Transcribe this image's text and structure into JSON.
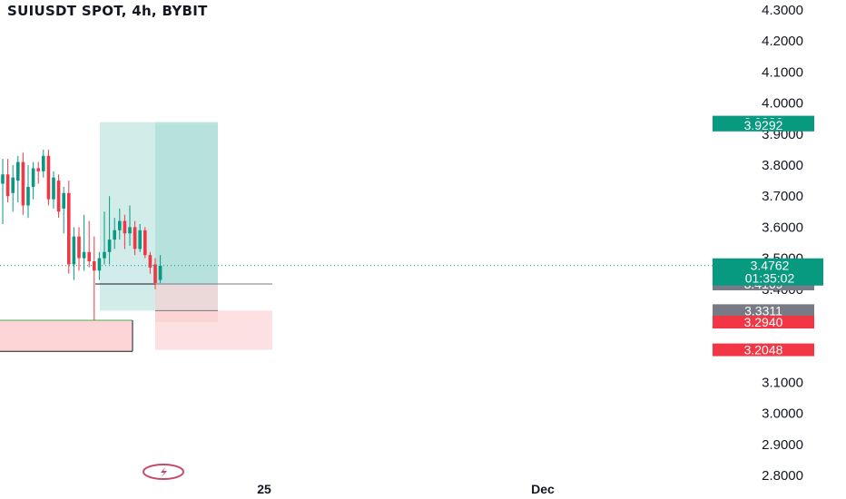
{
  "header": {
    "title": "SUIUSDT SPOT, 4h, BYBIT"
  },
  "chart_data": {
    "type": "candlestick",
    "symbol": "SUIUSDT",
    "market": "SPOT",
    "timeframe": "4h",
    "exchange": "BYBIT",
    "price_axis": {
      "ticks": [
        "4.3000",
        "4.2000",
        "4.1000",
        "4.0000",
        "3.9000",
        "3.8000",
        "3.7000",
        "3.6000",
        "3.5000",
        "3.4000",
        "3.3000",
        "3.2000",
        "3.1000",
        "3.0000",
        "2.9000",
        "2.8000"
      ],
      "ylim": [
        2.79,
        4.32
      ]
    },
    "time_axis": {
      "labels": [
        "25",
        "Dec"
      ]
    },
    "current_price": {
      "value": "3.4762",
      "countdown": "01:35:02",
      "color": "#089981"
    },
    "price_tags": [
      {
        "value": "3.9386",
        "color": "#089981"
      },
      {
        "value": "3.9292",
        "color": "#089981"
      },
      {
        "value": "3.4169",
        "color": "#787b86"
      },
      {
        "value": "3.3311",
        "color": "#787b86"
      },
      {
        "value": "3.2940",
        "color": "#f23645"
      },
      {
        "value": "3.2048",
        "color": "#f23645"
      }
    ],
    "candles": [
      {
        "o": 3.74,
        "h": 3.82,
        "l": 3.61,
        "c": 3.77
      },
      {
        "o": 3.77,
        "h": 3.82,
        "l": 3.68,
        "c": 3.7
      },
      {
        "o": 3.71,
        "h": 3.8,
        "l": 3.65,
        "c": 3.76
      },
      {
        "o": 3.75,
        "h": 3.83,
        "l": 3.68,
        "c": 3.81
      },
      {
        "o": 3.81,
        "h": 3.84,
        "l": 3.64,
        "c": 3.67
      },
      {
        "o": 3.67,
        "h": 3.8,
        "l": 3.63,
        "c": 3.73
      },
      {
        "o": 3.73,
        "h": 3.81,
        "l": 3.69,
        "c": 3.79
      },
      {
        "o": 3.79,
        "h": 3.81,
        "l": 3.74,
        "c": 3.78
      },
      {
        "o": 3.78,
        "h": 3.85,
        "l": 3.76,
        "c": 3.83
      },
      {
        "o": 3.83,
        "h": 3.85,
        "l": 3.67,
        "c": 3.69
      },
      {
        "o": 3.69,
        "h": 3.78,
        "l": 3.66,
        "c": 3.76
      },
      {
        "o": 3.75,
        "h": 3.77,
        "l": 3.63,
        "c": 3.65
      },
      {
        "o": 3.66,
        "h": 3.73,
        "l": 3.58,
        "c": 3.71
      },
      {
        "o": 3.71,
        "h": 3.75,
        "l": 3.45,
        "c": 3.48
      },
      {
        "o": 3.48,
        "h": 3.6,
        "l": 3.43,
        "c": 3.57
      },
      {
        "o": 3.57,
        "h": 3.6,
        "l": 3.46,
        "c": 3.5
      },
      {
        "o": 3.5,
        "h": 3.64,
        "l": 3.46,
        "c": 3.52
      },
      {
        "o": 3.52,
        "h": 3.62,
        "l": 3.47,
        "c": 3.49
      },
      {
        "o": 3.49,
        "h": 3.57,
        "l": 3.3,
        "c": 3.46
      },
      {
        "o": 3.46,
        "h": 3.52,
        "l": 3.43,
        "c": 3.5
      },
      {
        "o": 3.5,
        "h": 3.65,
        "l": 3.48,
        "c": 3.52
      },
      {
        "o": 3.52,
        "h": 3.7,
        "l": 3.48,
        "c": 3.56
      },
      {
        "o": 3.56,
        "h": 3.63,
        "l": 3.53,
        "c": 3.59
      },
      {
        "o": 3.59,
        "h": 3.66,
        "l": 3.56,
        "c": 3.62
      },
      {
        "o": 3.62,
        "h": 3.64,
        "l": 3.53,
        "c": 3.58
      },
      {
        "o": 3.58,
        "h": 3.67,
        "l": 3.54,
        "c": 3.6
      },
      {
        "o": 3.6,
        "h": 3.62,
        "l": 3.51,
        "c": 3.53
      },
      {
        "o": 3.53,
        "h": 3.61,
        "l": 3.52,
        "c": 3.59
      },
      {
        "o": 3.59,
        "h": 3.6,
        "l": 3.5,
        "c": 3.51
      },
      {
        "o": 3.51,
        "h": 3.52,
        "l": 3.45,
        "c": 3.47
      },
      {
        "o": 3.48,
        "h": 3.5,
        "l": 3.4,
        "c": 3.42
      },
      {
        "o": 3.43,
        "h": 3.51,
        "l": 3.42,
        "c": 3.476
      }
    ],
    "zones": [
      {
        "kind": "profit",
        "y1": 3.9386,
        "y2": 3.3311
      },
      {
        "kind": "loss",
        "y1": 3.3311,
        "y2": 3.2048
      },
      {
        "kind": "profit",
        "y1": 3.9292,
        "y2": 3.4169
      },
      {
        "kind": "loss",
        "y1": 3.4169,
        "y2": 3.294
      },
      {
        "kind": "profit",
        "y1": 3.9386,
        "y2": 3.4169
      },
      {
        "kind": "support",
        "y1": 3.3,
        "y2": 3.2
      }
    ],
    "colors": {
      "up": "#089981",
      "down": "#f23645",
      "profit_zone": "#b2dfdb",
      "loss_zone": "#fccbcd"
    }
  }
}
